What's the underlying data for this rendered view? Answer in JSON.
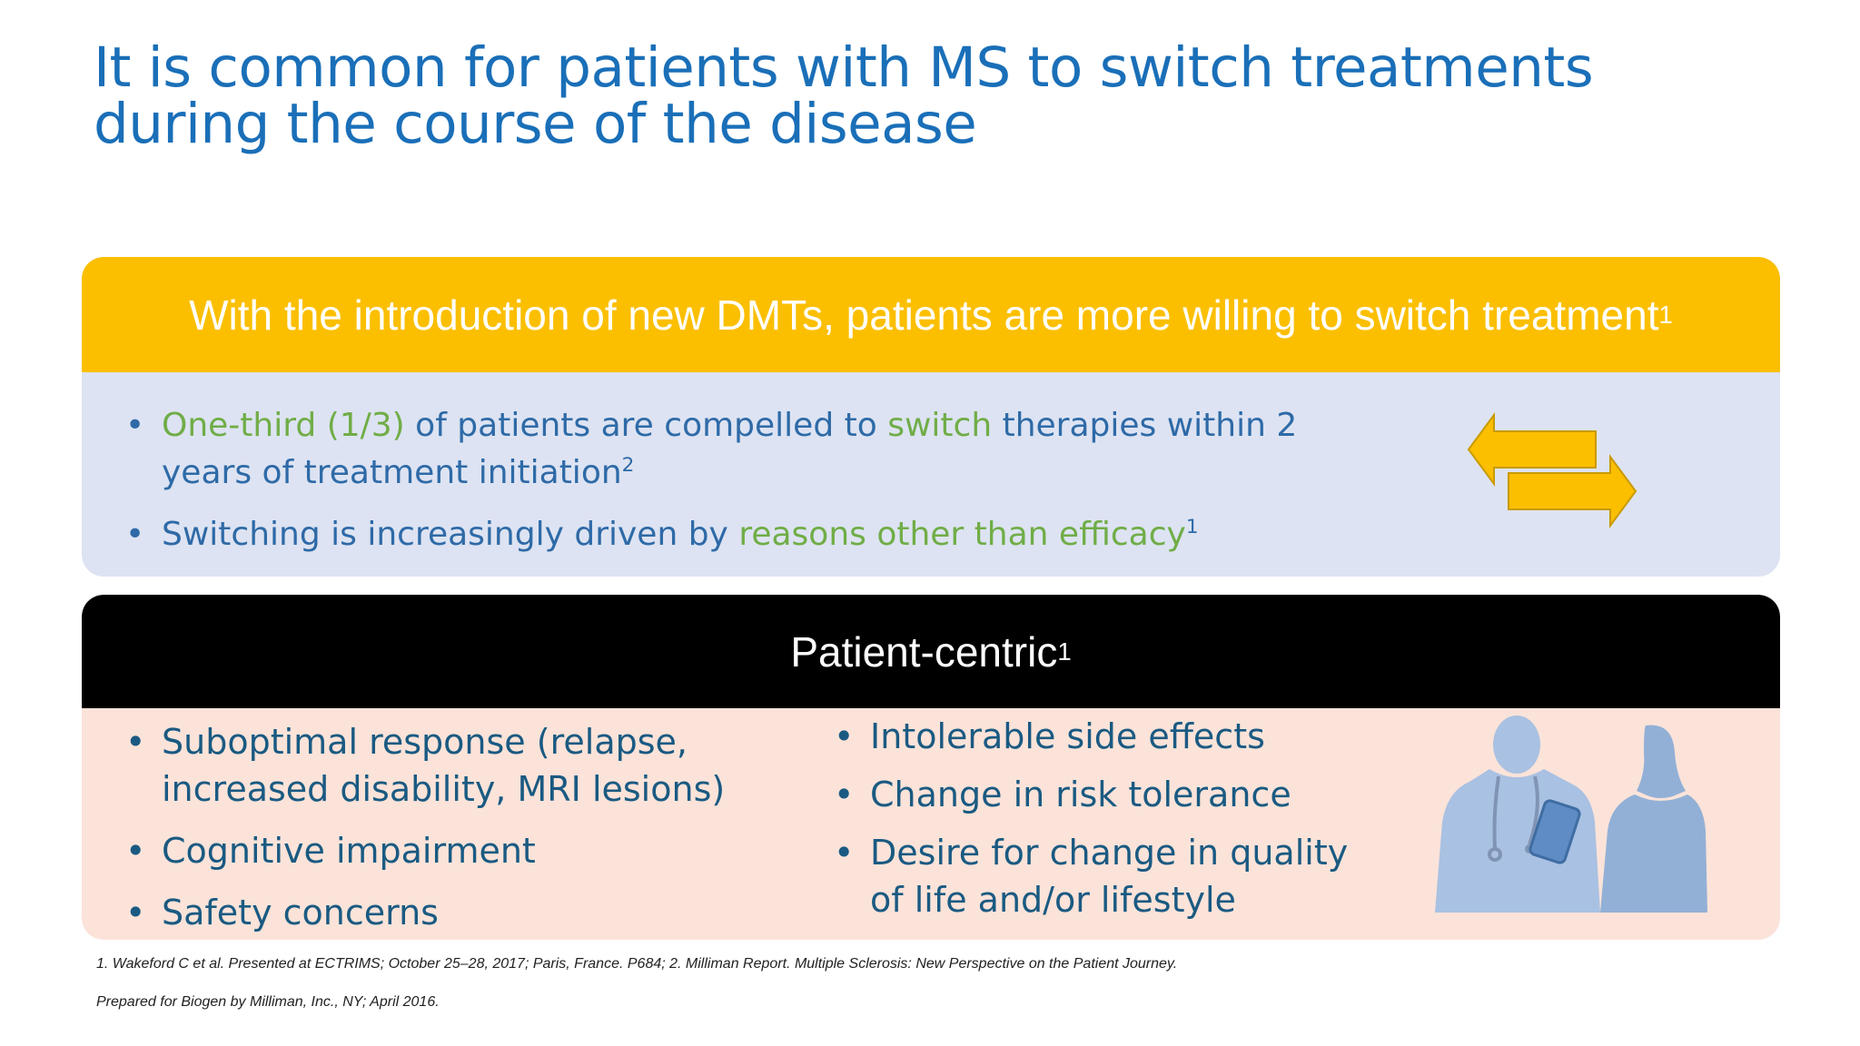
{
  "slide": {
    "title": "It is common for patients with MS to switch treatments during the course of the disease"
  },
  "top_panel": {
    "heading": "With the introduction of new DMTs, patients are more willing to switch treatment",
    "heading_sup": "1",
    "bullets": [
      {
        "part1_green": "One-third (1/3)",
        "part2": " of patients are compelled to ",
        "part3_green": "switch",
        "part4": " therapies within 2 years of treatment initiation",
        "sup": "2"
      },
      {
        "part1": "Switching is increasingly driven by ",
        "part2_green": "reasons other than efficacy",
        "sup": "1"
      }
    ],
    "bullet_char": "•",
    "arrow_color": "#fbbf00",
    "icon": "switch-arrows-icon"
  },
  "bottom_panel": {
    "heading": "Patient-centric",
    "heading_sup": "1",
    "left_bullets": [
      "Suboptimal response (relapse, increased disability, MRI lesions)",
      "Cognitive impairment",
      "Safety concerns"
    ],
    "right_bullets": [
      "Intolerable side effects",
      "Change in risk tolerance",
      "Desire for change in quality of life and/or lifestyle"
    ],
    "bullet_char": "•",
    "illustration": "doctor-patient-silhouette"
  },
  "footnotes": {
    "line1": "1. Wakeford C et al. Presented at ECTRIMS; October 25–28, 2017; Paris, France. P684; 2. Milliman Report. Multiple Sclerosis: New Perspective on the Patient Journey.",
    "line2": "Prepared for Biogen by Milliman, Inc., NY; April 2016."
  },
  "colors": {
    "title_blue": "#1a6fb8",
    "accent_yellow": "#fbbf00",
    "panel_blue": "#dde3f2",
    "panel_peach": "#fbe3d9",
    "highlight_green": "#70ad47",
    "body_blue": "#2e6aa7",
    "body_teal": "#1a5a82"
  }
}
